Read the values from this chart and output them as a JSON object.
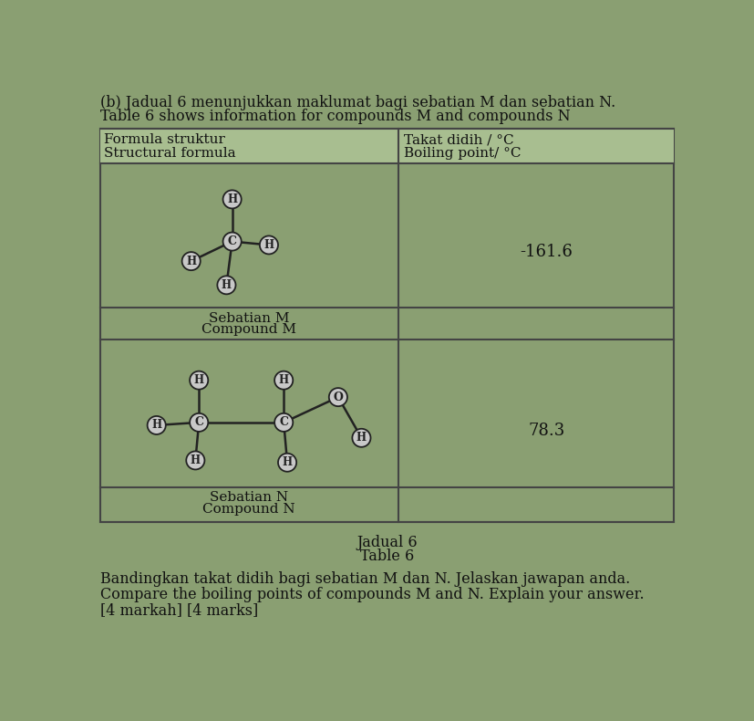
{
  "title_line1": "(b) Jadual 6 menunjukkan maklumat bagi sebatian M dan sebatian N.",
  "title_line2": "Table 6 shows information for compounds M and compounds N",
  "col1_header_line1": "Formula struktur",
  "col1_header_line2": "Structural formula",
  "col2_header_line1": "Takat didih / °C",
  "col2_header_line2": "Boiling point/ °C",
  "compound_m_label1": "Sebatian M",
  "compound_m_label2": "Compound M",
  "compound_n_label1": "Sebatian N",
  "compound_n_label2": "Compound N",
  "boiling_point_m": "-161.6",
  "boiling_point_n": "78.3",
  "caption_line1": "Jadual 6",
  "caption_line2": "Table 6",
  "footer_line1": "Bandingkan takat didih bagi sebatian M dan N. Jelaskan jawapan anda.",
  "footer_line2": "Compare the boiling points of compounds M and N. Explain your answer.",
  "footer_line3": "[4 markah] [4 marks]",
  "bg_color": "#8a9f72",
  "cell_bg": "#8a9f72",
  "header_bg": "#a8be90",
  "text_color": "#111111",
  "node_color": "#c8c8c8",
  "node_edge_color": "#222222",
  "table_edge_color": "#444444"
}
